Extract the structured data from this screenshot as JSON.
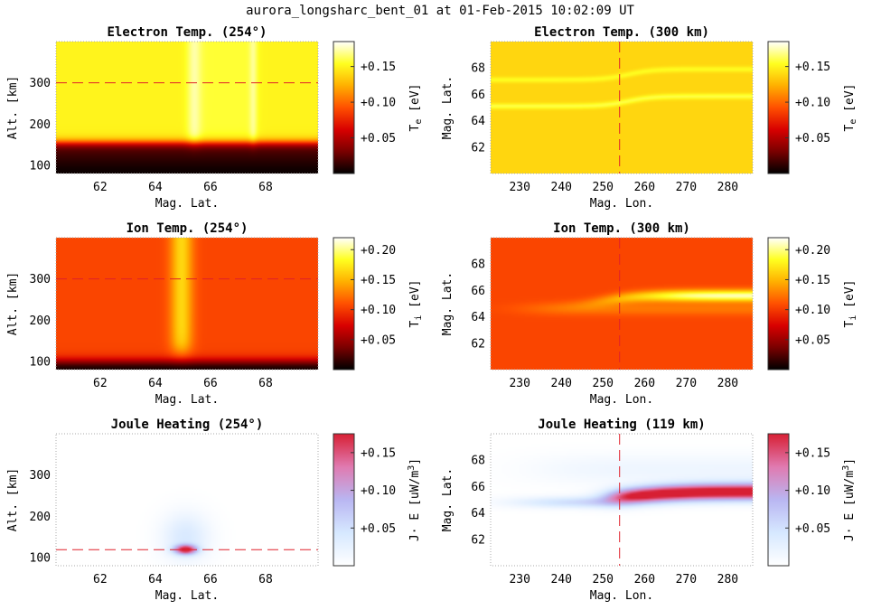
{
  "figure": {
    "suptitle": "aurora_longsharc_bent_01 at 01-Feb-2015 10:02:09 UT"
  },
  "colormaps": {
    "hot": [
      "#000000",
      "#7a0000",
      "#d80000",
      "#ff5000",
      "#ffb000",
      "#ffff20",
      "#ffffff"
    ],
    "joule": [
      "#ffffff",
      "#d6e8ff",
      "#b9b6f2",
      "#e07ab0",
      "#d71f33"
    ]
  },
  "chart_data": [
    {
      "id": "p1",
      "type": "heatmap",
      "title": "Electron Temp. (254°)",
      "xlabel": "Mag. Lat.",
      "ylabel": "Alt. [km]",
      "xlim": [
        60.4,
        69.9
      ],
      "ylim": [
        80,
        400
      ],
      "xticks": [
        62,
        64,
        66,
        68
      ],
      "yticks": [
        100,
        200,
        300
      ],
      "cbar_label": "T_e [eV]",
      "cbar_ticks": [
        "+0.05",
        "+0.10",
        "+0.15"
      ],
      "cbar_range": [
        0,
        0.185
      ],
      "cmap": "hot",
      "field": "Te_alt",
      "refline": {
        "orientation": "horizontal",
        "value": 300
      }
    },
    {
      "id": "p2",
      "type": "heatmap",
      "title": "Electron Temp. (300 km)",
      "xlabel": "Mag. Lon.",
      "ylabel": "Mag. Lat.",
      "xlim": [
        223,
        286
      ],
      "ylim": [
        60,
        70
      ],
      "xticks": [
        230,
        240,
        250,
        260,
        270,
        280
      ],
      "yticks": [
        62,
        64,
        66,
        68
      ],
      "cbar_label": "T_e [eV]",
      "cbar_ticks": [
        "+0.05",
        "+0.10",
        "+0.15"
      ],
      "cbar_range": [
        0,
        0.185
      ],
      "cmap": "hot",
      "field": "Te_map",
      "refline": {
        "orientation": "vertical",
        "value": 254
      }
    },
    {
      "id": "p3",
      "type": "heatmap",
      "title": "Ion Temp. (254°)",
      "xlabel": "Mag. Lat.",
      "ylabel": "Alt. [km]",
      "xlim": [
        60.4,
        69.9
      ],
      "ylim": [
        80,
        400
      ],
      "xticks": [
        62,
        64,
        66,
        68
      ],
      "yticks": [
        100,
        200,
        300
      ],
      "cbar_label": "T_i [eV]",
      "cbar_ticks": [
        "+0.05",
        "+0.10",
        "+0.15",
        "+0.20"
      ],
      "cbar_range": [
        0,
        0.22
      ],
      "cmap": "hot",
      "field": "Ti_alt",
      "refline": {
        "orientation": "horizontal",
        "value": 300
      }
    },
    {
      "id": "p4",
      "type": "heatmap",
      "title": "Ion Temp. (300 km)",
      "xlabel": "Mag. Lon.",
      "ylabel": "Mag. Lat.",
      "xlim": [
        223,
        286
      ],
      "ylim": [
        60,
        70
      ],
      "xticks": [
        230,
        240,
        250,
        260,
        270,
        280
      ],
      "yticks": [
        62,
        64,
        66,
        68
      ],
      "cbar_label": "T_i [eV]",
      "cbar_ticks": [
        "+0.05",
        "+0.10",
        "+0.15",
        "+0.20"
      ],
      "cbar_range": [
        0,
        0.22
      ],
      "cmap": "hot",
      "field": "Ti_map",
      "refline": {
        "orientation": "vertical",
        "value": 254
      }
    },
    {
      "id": "p5",
      "type": "heatmap",
      "title": "Joule Heating (254°)",
      "xlabel": "Mag. Lat.",
      "ylabel": "Alt. [km]",
      "xlim": [
        60.4,
        69.9
      ],
      "ylim": [
        80,
        400
      ],
      "xticks": [
        62,
        64,
        66,
        68
      ],
      "yticks": [
        100,
        200,
        300
      ],
      "cbar_label": "J· E [uW/m^3]",
      "cbar_ticks": [
        "+0.05",
        "+0.10",
        "+0.15"
      ],
      "cbar_range": [
        0,
        0.175
      ],
      "cmap": "joule",
      "field": "J_alt",
      "refline": {
        "orientation": "horizontal",
        "value": 119
      }
    },
    {
      "id": "p6",
      "type": "heatmap",
      "title": "Joule Heating (119 km)",
      "xlabel": "Mag. Lon.",
      "ylabel": "Mag. Lat.",
      "xlim": [
        223,
        286
      ],
      "ylim": [
        60,
        70
      ],
      "xticks": [
        230,
        240,
        250,
        260,
        270,
        280
      ],
      "yticks": [
        62,
        64,
        66,
        68
      ],
      "cbar_label": "J· E [uW/m^3]",
      "cbar_ticks": [
        "+0.05",
        "+0.10",
        "+0.15"
      ],
      "cbar_range": [
        0,
        0.175
      ],
      "cmap": "joule",
      "field": "J_map",
      "refline": {
        "orientation": "vertical",
        "value": 254
      }
    }
  ]
}
